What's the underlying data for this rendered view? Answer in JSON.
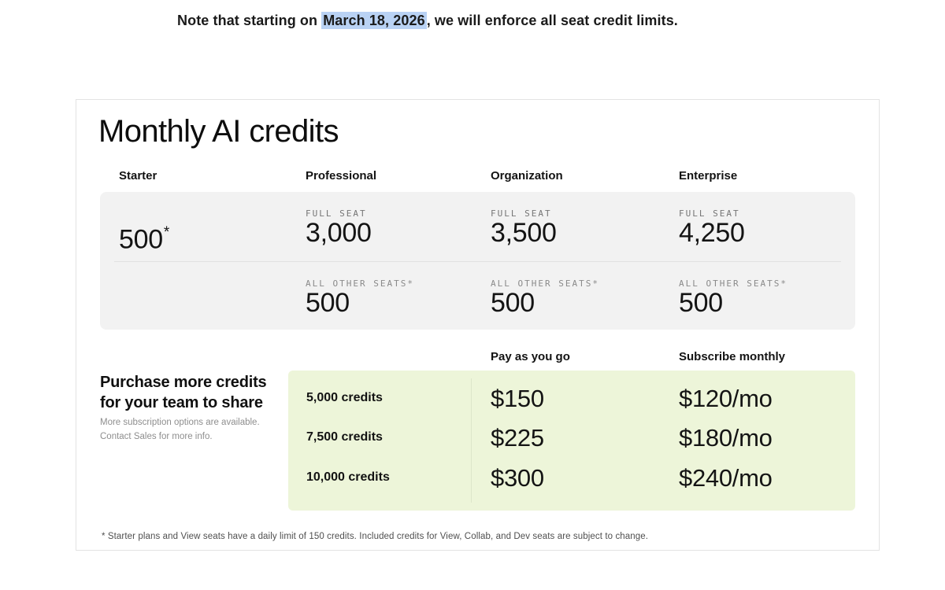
{
  "note": {
    "prefix": "Note that starting on ",
    "highlight": "March 18, 2026",
    "suffix": ", we will enforce all seat credit limits."
  },
  "card": {
    "title": "Monthly AI credits",
    "plans": [
      "Starter",
      "Professional",
      "Organization",
      "Enterprise"
    ],
    "credits_table": {
      "full_seat_label": "FULL SEAT",
      "all_other_seats_label": "ALL OTHER SEATS*",
      "starter_value": "500",
      "starter_superscript": "*",
      "full_seat_values": {
        "professional": "3,000",
        "organization": "3,500",
        "enterprise": "4,250"
      },
      "all_other_seats_values": {
        "professional": "500",
        "organization": "500",
        "enterprise": "500"
      }
    },
    "purchase": {
      "heading_line1": "Purchase more credits",
      "heading_line2": "for your team to share",
      "subtext_line1": "More subscription options are available.",
      "subtext_line2": "Contact Sales for more info.",
      "pay_as_you_go_label": "Pay as you go",
      "subscribe_monthly_label": "Subscribe monthly",
      "tiers": [
        {
          "credits": "5,000 credits",
          "pay_as_you_go": "$150",
          "subscribe_monthly": "$120/mo"
        },
        {
          "credits": "7,500 credits",
          "pay_as_you_go": "$225",
          "subscribe_monthly": "$180/mo"
        },
        {
          "credits": "10,000 credits",
          "pay_as_you_go": "$300",
          "subscribe_monthly": "$240/mo"
        }
      ]
    },
    "footnote": "* Starter plans and View seats have a daily limit of 150 credits. Included credits for View, Collab, and Dev seats are subject to change."
  },
  "colors": {
    "selection_highlight": "#b9d2f4",
    "gray_box": "#f2f2f2",
    "green_box": "#edf5d9",
    "card_border": "#e3e3e3",
    "muted_label": "#757575"
  }
}
